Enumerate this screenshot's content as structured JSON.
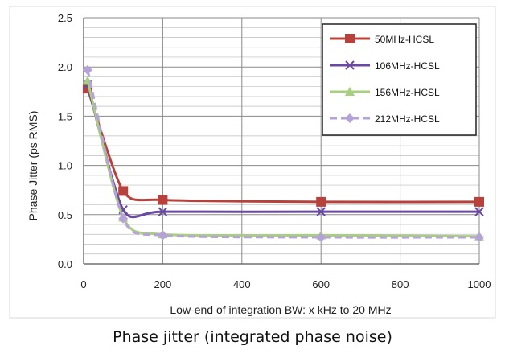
{
  "chart_data": {
    "type": "line",
    "xlabel": "Low-end of integration BW: x kHz to 20 MHz",
    "ylabel": "Phase Jitter (ps RMS)",
    "xlim": [
      0,
      1000
    ],
    "ylim": [
      0,
      2.5
    ],
    "x_ticks": [
      "0",
      "200",
      "400",
      "600",
      "800",
      "1000"
    ],
    "y_ticks": [
      "0.0",
      "0.5",
      "1.0",
      "1.5",
      "2.0",
      "2.5"
    ],
    "grid": true,
    "legend_position": "top-right",
    "x": [
      10,
      100,
      200,
      600,
      1000
    ],
    "series": [
      {
        "name": "50MHz-HCSL",
        "color": "#b8413b",
        "marker": "square",
        "values": [
          1.78,
          0.74,
          0.65,
          0.63,
          0.63
        ]
      },
      {
        "name": "106MHz-HCSL",
        "color": "#6a4aa0",
        "marker": "x",
        "values": [
          1.82,
          0.55,
          0.53,
          0.53,
          0.53
        ]
      },
      {
        "name": "156MHz-HCSL",
        "color": "#a8cf7e",
        "marker": "triangle",
        "values": [
          1.86,
          0.47,
          0.3,
          0.29,
          0.28
        ]
      },
      {
        "name": "212MHz-HCSL",
        "color": "#b5a2d8",
        "marker": "diamond",
        "dashed": true,
        "values": [
          1.97,
          0.46,
          0.29,
          0.27,
          0.27
        ]
      }
    ]
  },
  "caption": "Phase jitter (integrated phase noise)"
}
